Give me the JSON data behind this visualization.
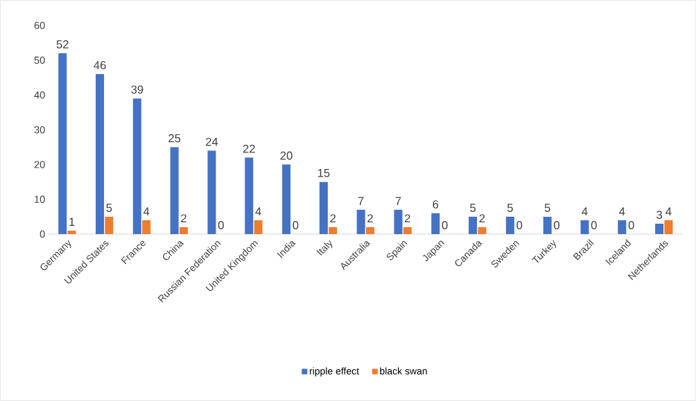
{
  "chart_data": {
    "type": "bar",
    "categories": [
      "Germany",
      "United States",
      "France",
      "China",
      "Russian Federation",
      "United Kingdom",
      "India",
      "Italy",
      "Australia",
      "Spain",
      "Japan",
      "Canada",
      "Sweden",
      "Turkey",
      "Brazil",
      "Iceland",
      "Netherlands"
    ],
    "series": [
      {
        "name": "ripple effect",
        "color": "#4472c4",
        "values": [
          52,
          46,
          39,
          25,
          24,
          22,
          20,
          15,
          7,
          7,
          6,
          5,
          5,
          5,
          4,
          4,
          3
        ]
      },
      {
        "name": "black swan",
        "color": "#ed7d31",
        "values": [
          1,
          5,
          4,
          2,
          0,
          4,
          0,
          2,
          2,
          2,
          0,
          2,
          0,
          0,
          0,
          0,
          4
        ]
      }
    ],
    "ylim": [
      0,
      60
    ],
    "yticks": [
      0,
      10,
      20,
      30,
      40,
      50,
      60
    ],
    "data_labels": true,
    "legend": "bottom"
  }
}
